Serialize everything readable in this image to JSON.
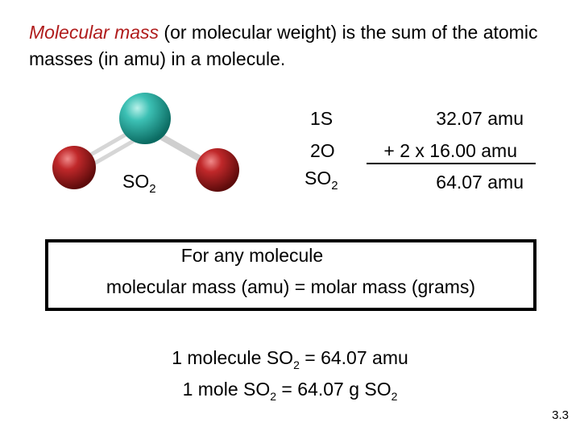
{
  "intro": {
    "term": "Molecular mass",
    "rest": " (or molecular weight) is the sum of the atomic masses (in amu) in a molecule."
  },
  "model": {
    "label_base": "SO",
    "label_sub": "2",
    "colors": {
      "sulfur": "#1fa79c",
      "oxygen": "#b01c1c"
    }
  },
  "calc": {
    "row1_label": "1S",
    "row1_value": "32.07 amu",
    "row2_label": "2O",
    "row2_value": "+ 2 x 16.00 amu",
    "total_base": "SO",
    "total_sub": "2",
    "total_value": "64.07 amu"
  },
  "box": {
    "line1": "For any molecule",
    "line2": "molecular mass (amu) = molar mass (grams)"
  },
  "equations": {
    "eq1_pre": "1 molecule SO",
    "eq1_sub": "2",
    "eq1_post": " = 64.07 amu",
    "eq2_pre": "1 mole SO",
    "eq2_sub": "2",
    "eq2_mid": " = 64.07 g SO",
    "eq2_sub2": "2"
  },
  "slide_number": "3.3"
}
